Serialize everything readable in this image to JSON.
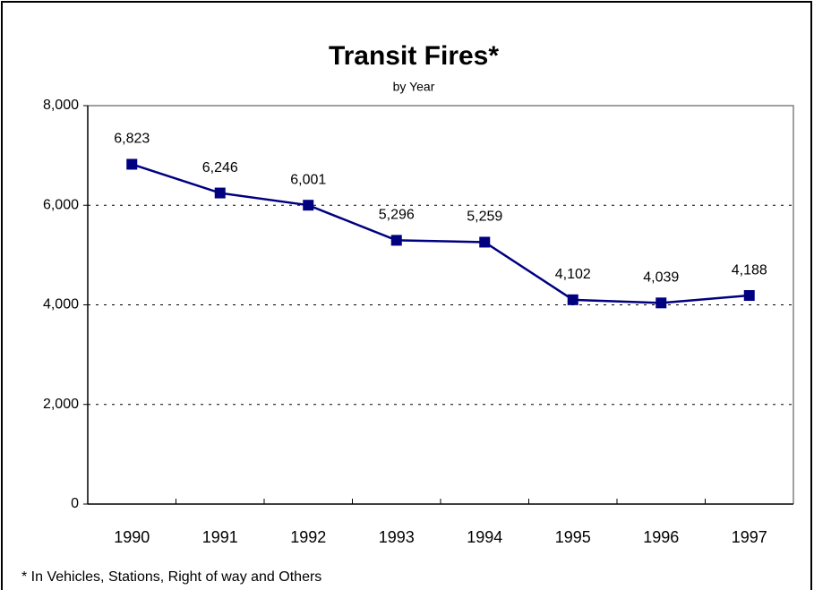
{
  "chart_data": {
    "type": "line",
    "title": "Transit Fires*",
    "subtitle": "by Year",
    "footnote": "* In Vehicles, Stations, Right of way and Others",
    "categories": [
      "1990",
      "1991",
      "1992",
      "1993",
      "1994",
      "1995",
      "1996",
      "1997"
    ],
    "series": [
      {
        "name": "Transit Fires",
        "color": "#000080",
        "values": [
          6823,
          6246,
          6001,
          5296,
          5259,
          4102,
          4039,
          4188
        ],
        "value_labels": [
          "6,823",
          "6,246",
          "6,001",
          "5,296",
          "5,259",
          "4,102",
          "4,039",
          "4,188"
        ]
      }
    ],
    "ylim": [
      0,
      8000
    ],
    "yticks": [
      0,
      {
        "value": 2000,
        "label": "2,000"
      },
      {
        "value": 4000,
        "label": "4,000"
      },
      {
        "value": 6000,
        "label": "6,000"
      },
      {
        "value": 8000,
        "label": "8,000"
      }
    ],
    "grid": true
  }
}
